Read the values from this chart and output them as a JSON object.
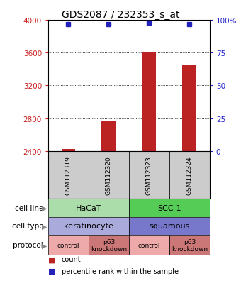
{
  "title": "GDS2087 / 232353_s_at",
  "samples": [
    "GSM112319",
    "GSM112320",
    "GSM112323",
    "GSM112324"
  ],
  "counts": [
    2430,
    2760,
    3600,
    3450
  ],
  "percentile_ranks": [
    97,
    97,
    98,
    97
  ],
  "ylim_left": [
    2400,
    4000
  ],
  "ylim_right": [
    0,
    100
  ],
  "yticks_left": [
    2400,
    2800,
    3200,
    3600,
    4000
  ],
  "yticks_right": [
    0,
    25,
    50,
    75,
    100
  ],
  "cell_line": [
    {
      "label": "HaCaT",
      "cols": [
        0,
        1
      ],
      "color": "#AADDAA"
    },
    {
      "label": "SCC-1",
      "cols": [
        2,
        3
      ],
      "color": "#55CC55"
    }
  ],
  "cell_type": [
    {
      "label": "keratinocyte",
      "cols": [
        0,
        1
      ],
      "color": "#AAAADD"
    },
    {
      "label": "squamous",
      "cols": [
        2,
        3
      ],
      "color": "#7777CC"
    }
  ],
  "protocol": [
    {
      "label": "control",
      "cols": [
        0
      ],
      "color": "#EEAAAA"
    },
    {
      "label": "p63\nknockdown",
      "cols": [
        1
      ],
      "color": "#CC7777"
    },
    {
      "label": "control",
      "cols": [
        2
      ],
      "color": "#EEAAAA"
    },
    {
      "label": "p63\nknockdown",
      "cols": [
        3
      ],
      "color": "#CC7777"
    }
  ],
  "bar_color": "#BB2222",
  "dot_color": "#2222BB",
  "count_base": 2400,
  "left_tick_color": "#CC2222",
  "right_tick_color": "#2222CC",
  "title_fontsize": 10,
  "tick_fontsize": 7.5,
  "sample_box_color": "#CCCCCC",
  "bar_width": 0.35
}
